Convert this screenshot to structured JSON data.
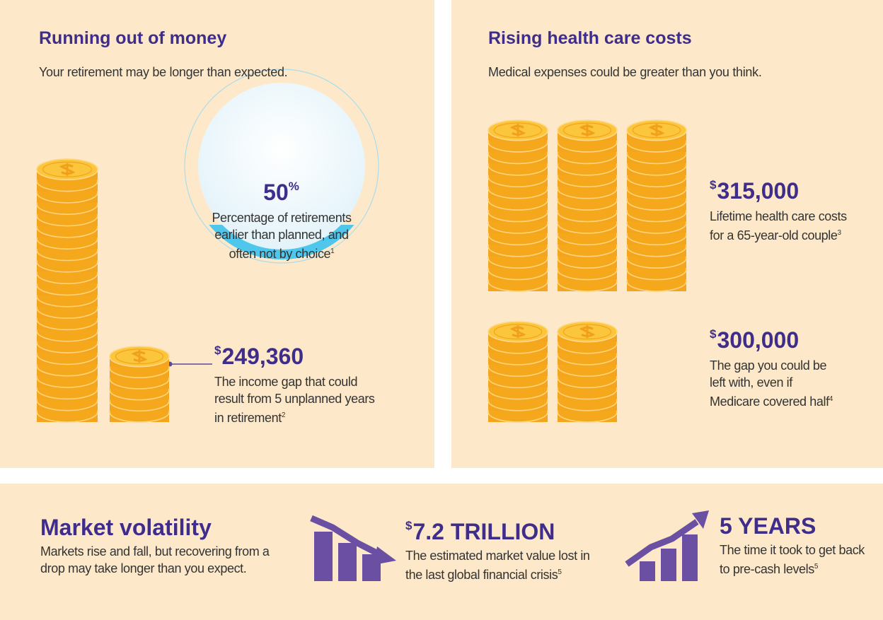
{
  "left": {
    "title": "Running out of money",
    "subtitle": "Your retirement may be longer than expected.",
    "circle": {
      "value": "50",
      "sup": "%",
      "text": "Percentage of retirements earlier than planned, and often not by choice",
      "note": "1"
    },
    "gap": {
      "sup": "$",
      "value": "249,360",
      "text": "The income gap that could result from 5 unplanned years in retirement",
      "note": "2"
    }
  },
  "right": {
    "title": "Rising health care costs",
    "subtitle": "Medical expenses could be greater than you think.",
    "stats": [
      {
        "sup": "$",
        "value": "315,000",
        "text": "Lifetime health care costs for a 65-year-old couple",
        "note": "3"
      },
      {
        "sup": "$",
        "value": "300,000",
        "text": "The gap you could be left with, even if Medicare covered half",
        "note": "4"
      }
    ]
  },
  "bottom": {
    "title": "Market volatility",
    "subtitle": "Markets rise and fall, but recovering from a drop may take longer than you expect.",
    "stats": [
      {
        "sup": "$",
        "value": "7.2 TRILLION",
        "text": "The estimated market value lost in the last global financial crisis",
        "note": "5"
      },
      {
        "value": "5 YEARS",
        "text": "The time it took to get back to pre-cash levels",
        "note": "5"
      }
    ]
  }
}
